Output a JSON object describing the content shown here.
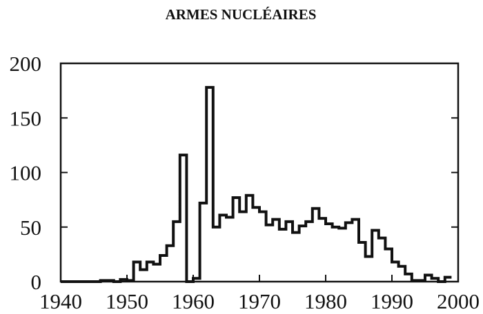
{
  "chart_data": {
    "type": "line",
    "step": true,
    "title": "ARMES NUCLÉAIRES",
    "xlabel": "",
    "ylabel": "",
    "xlim": [
      1940,
      2000
    ],
    "ylim": [
      0,
      200
    ],
    "xticks": [
      1940,
      1950,
      1960,
      1970,
      1980,
      1990,
      2000
    ],
    "yticks": [
      0,
      50,
      100,
      150,
      200
    ],
    "grid": false,
    "legend": "none",
    "color": "#111111",
    "series": [
      {
        "x": [
          1945,
          1946,
          1947,
          1948,
          1949,
          1950,
          1951,
          1952,
          1953,
          1954,
          1955,
          1956,
          1957,
          1958,
          1959,
          1960,
          1961,
          1962,
          1963,
          1964,
          1965,
          1966,
          1967,
          1968,
          1969,
          1970,
          1971,
          1972,
          1973,
          1974,
          1975,
          1976,
          1977,
          1978,
          1979,
          1980,
          1981,
          1982,
          1983,
          1984,
          1985,
          1986,
          1987,
          1988,
          1989,
          1990,
          1991,
          1992,
          1993,
          1994,
          1995,
          1996,
          1997,
          1998
        ],
        "values": [
          0,
          1,
          1,
          0,
          2,
          1,
          18,
          11,
          18,
          16,
          24,
          33,
          55,
          116,
          0,
          3,
          72,
          178,
          50,
          61,
          59,
          77,
          64,
          79,
          68,
          64,
          52,
          57,
          48,
          55,
          45,
          51,
          55,
          67,
          58,
          53,
          50,
          49,
          54,
          57,
          36,
          23,
          47,
          40,
          30,
          18,
          14,
          7,
          1,
          1,
          6,
          3,
          0,
          4
        ]
      }
    ]
  }
}
